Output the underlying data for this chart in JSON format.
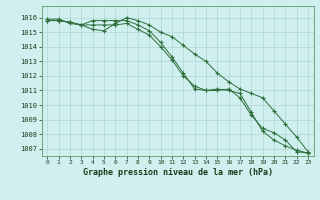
{
  "title": "Graphe pression niveau de la mer (hPa)",
  "background_color": "#cff0ee",
  "plot_bg_color": "#cff0ee",
  "grid_color": "#aacfcc",
  "line_color": "#2d6e3a",
  "ylim": [
    1006.5,
    1016.8
  ],
  "yticks": [
    1007,
    1008,
    1009,
    1010,
    1011,
    1012,
    1013,
    1014,
    1015,
    1016
  ],
  "series": [
    [
      1015.8,
      1015.8,
      1015.7,
      1015.5,
      1015.8,
      1015.8,
      1015.8,
      1015.8,
      1015.5,
      1015.1,
      1014.3,
      1013.3,
      1012.2,
      1011.1,
      1011.0,
      1011.0,
      1011.1,
      1010.5,
      1009.3,
      1008.4,
      1008.1,
      1007.6,
      1006.8,
      1006.7
    ],
    [
      1015.9,
      1015.9,
      1015.6,
      1015.5,
      1015.2,
      1015.1,
      1015.6,
      1016.0,
      1015.8,
      1015.5,
      1015.0,
      1014.7,
      1014.1,
      1013.5,
      1013.0,
      1012.2,
      1011.6,
      1011.1,
      1010.8,
      1010.5,
      1009.6,
      1008.7,
      1007.8,
      1006.8
    ],
    [
      1015.8,
      1015.8,
      1015.7,
      1015.5,
      1015.5,
      1015.5,
      1015.5,
      1015.6,
      1015.2,
      1014.8,
      1014.0,
      1013.1,
      1012.0,
      1011.3,
      1011.0,
      1011.1,
      1011.0,
      1010.8,
      1009.5,
      1008.2,
      1007.6,
      1007.2,
      1006.9,
      1006.7
    ]
  ],
  "figwidth": 3.2,
  "figheight": 2.0,
  "dpi": 100
}
